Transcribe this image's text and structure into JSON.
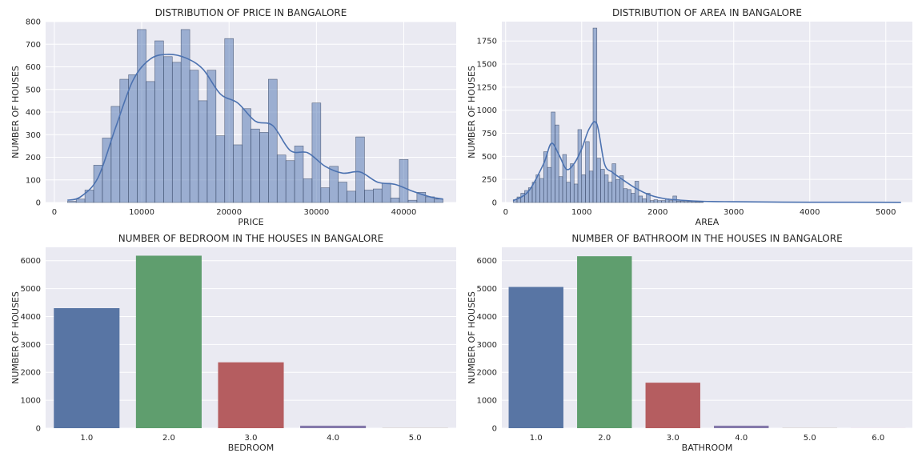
{
  "chart_data": [
    {
      "type": "histogram",
      "title": "DISTRIBUTION OF PRICE IN BANGALORE",
      "xlabel": "PRICE",
      "ylabel": "NUMBER OF HOUSES",
      "xlim": [
        -1000,
        46000
      ],
      "ylim": [
        0,
        800
      ],
      "xticks": [
        "0",
        "10000",
        "20000",
        "30000",
        "40000"
      ],
      "yticks": [
        "0",
        "100",
        "200",
        "300",
        "400",
        "500",
        "600",
        "700",
        "800"
      ],
      "grid": true,
      "kde": true,
      "bin_width": 1000,
      "bins_start": 1500,
      "counts": [
        5,
        15,
        55,
        165,
        285,
        425,
        545,
        565,
        765,
        535,
        715,
        645,
        620,
        765,
        585,
        450,
        585,
        295,
        725,
        255,
        415,
        325,
        310,
        545,
        210,
        185,
        250,
        105,
        440,
        65,
        160,
        90,
        50,
        290,
        55,
        60,
        85,
        20,
        190,
        10,
        45,
        25,
        15
      ],
      "kde_curve": {
        "x": [
          1500,
          3000,
          5000,
          7000,
          9000,
          11000,
          13000,
          15000,
          17000,
          19000,
          21000,
          23000,
          25000,
          27000,
          29000,
          31000,
          33000,
          35000,
          37000,
          39000,
          41000,
          43000,
          44500
        ],
        "y": [
          10,
          25,
          110,
          330,
          540,
          635,
          655,
          640,
          590,
          480,
          440,
          360,
          340,
          230,
          220,
          160,
          130,
          135,
          90,
          80,
          50,
          25,
          15
        ]
      },
      "color": "#4c72b0"
    },
    {
      "type": "histogram",
      "title": "DISTRIBUTION OF AREA IN BANGALORE",
      "xlabel": "AREA",
      "ylabel": "NUMBER OF HOUSES",
      "xlim": [
        -50,
        5350
      ],
      "ylim": [
        0,
        1960
      ],
      "xticks": [
        "0",
        "1000",
        "2000",
        "3000",
        "4000",
        "5000"
      ],
      "yticks": [
        "0",
        "250",
        "500",
        "750",
        "1000",
        "1250",
        "1500",
        "1750"
      ],
      "grid": true,
      "kde": true,
      "bin_width": 50,
      "bins_start": 100,
      "counts": [
        30,
        60,
        100,
        130,
        160,
        220,
        300,
        260,
        550,
        380,
        980,
        840,
        280,
        520,
        220,
        420,
        200,
        790,
        300,
        660,
        340,
        1890,
        480,
        360,
        300,
        220,
        420,
        250,
        290,
        150,
        140,
        100,
        230,
        70,
        40,
        100,
        20,
        30,
        20,
        20,
        40,
        20,
        70,
        15,
        15,
        10,
        10,
        8,
        6,
        5
      ],
      "kde_curve": {
        "x": [
          100,
          300,
          500,
          600,
          700,
          800,
          900,
          1000,
          1100,
          1200,
          1300,
          1400,
          1500,
          1700,
          1900,
          2100,
          2300,
          2600,
          3000,
          3500,
          4000,
          5200
        ],
        "y": [
          20,
          120,
          420,
          640,
          520,
          360,
          420,
          580,
          800,
          850,
          420,
          330,
          270,
          160,
          80,
          40,
          25,
          12,
          8,
          5,
          3,
          2
        ]
      },
      "color": "#4c72b0"
    },
    {
      "type": "bar",
      "title": "NUMBER OF BEDROOM IN THE HOUSES IN BANGALORE",
      "xlabel": "BEDROOM",
      "ylabel": "NUMBER OF HOUSES",
      "categories": [
        "1.0",
        "2.0",
        "3.0",
        "4.0",
        "5.0"
      ],
      "values": [
        4300,
        6180,
        2360,
        90,
        5
      ],
      "ylim": [
        0,
        6480
      ],
      "yticks": [
        "0",
        "1000",
        "2000",
        "3000",
        "4000",
        "5000",
        "6000"
      ],
      "grid": true,
      "colors": [
        "#5875a4",
        "#5f9e6e",
        "#b55d60",
        "#857aab",
        "#8d7866"
      ]
    },
    {
      "type": "bar",
      "title": "NUMBER OF BATHROOM IN THE HOUSES IN BANGALORE",
      "xlabel": "BATHROOM",
      "ylabel": "NUMBER OF HOUSES",
      "categories": [
        "1.0",
        "2.0",
        "3.0",
        "4.0",
        "5.0",
        "6.0"
      ],
      "values": [
        5060,
        6160,
        1630,
        90,
        5,
        3
      ],
      "ylim": [
        0,
        6480
      ],
      "yticks": [
        "0",
        "1000",
        "2000",
        "3000",
        "4000",
        "5000",
        "6000"
      ],
      "grid": true,
      "colors": [
        "#5875a4",
        "#5f9e6e",
        "#b55d60",
        "#857aab",
        "#8d7866",
        "#d095bf"
      ]
    }
  ]
}
